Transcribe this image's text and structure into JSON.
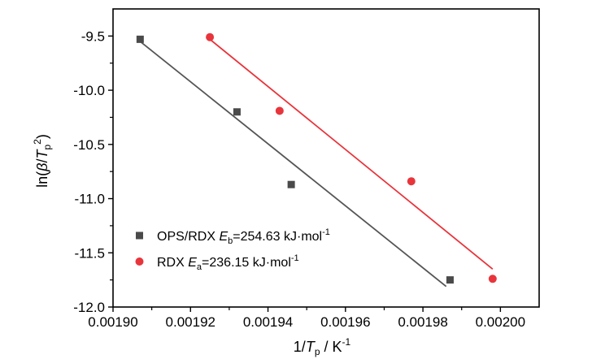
{
  "chart_data": {
    "type": "scatter",
    "xlabel": {
      "prefix": "1/",
      "var": "T",
      "sub": "p",
      "unit": " / K",
      "sup": "-1"
    },
    "ylabel": {
      "prefix": "ln(",
      "beta": "β",
      "slash": "/",
      "var": "T",
      "sub": "p",
      "sup": "2",
      "suffix": ")"
    },
    "xlim": [
      0.0019,
      0.00201
    ],
    "ylim": [
      -12.0,
      -9.25
    ],
    "x_ticks": [
      "0.00190",
      "0.00192",
      "0.00194",
      "0.00196",
      "0.00198",
      "0.00200"
    ],
    "x_tick_values": [
      0.0019,
      0.00192,
      0.00194,
      0.00196,
      0.00198,
      0.002
    ],
    "y_ticks": [
      "-9.5",
      "-10.0",
      "-10.5",
      "-11.0",
      "-11.5",
      "-12.0"
    ],
    "y_tick_values": [
      -9.5,
      -10.0,
      -10.5,
      -11.0,
      -11.5,
      -12.0
    ],
    "legend_position": "bottom-left",
    "series": [
      {
        "name": "OPS/RDX",
        "legend": {
          "pre": "OPS/RDX ",
          "var": "E",
          "sub": "b",
          "post": "=254.63 kJ·mol",
          "sup": "-1"
        },
        "marker": "square",
        "color": "#4a4a4a",
        "fit_color": "#555555",
        "x": [
          0.001907,
          0.001932,
          0.001946,
          0.001987
        ],
        "y": [
          -9.53,
          -10.2,
          -10.87,
          -11.75
        ],
        "fit": {
          "x": [
            0.001907,
            0.001986
          ],
          "y": [
            -9.55,
            -11.81
          ]
        }
      },
      {
        "name": "RDX",
        "legend": {
          "pre": "RDX ",
          "var": "E",
          "sub": "a",
          "post": "=236.15 kJ·mol",
          "sup": "-1"
        },
        "marker": "circle",
        "color": "#e8353c",
        "fit_color": "#e8353c",
        "x": [
          0.001925,
          0.001943,
          0.001977,
          0.001998
        ],
        "y": [
          -9.51,
          -10.19,
          -10.84,
          -11.74
        ],
        "fit": {
          "x": [
            0.001925,
            0.001998
          ],
          "y": [
            -9.53,
            -11.65
          ]
        }
      }
    ]
  }
}
